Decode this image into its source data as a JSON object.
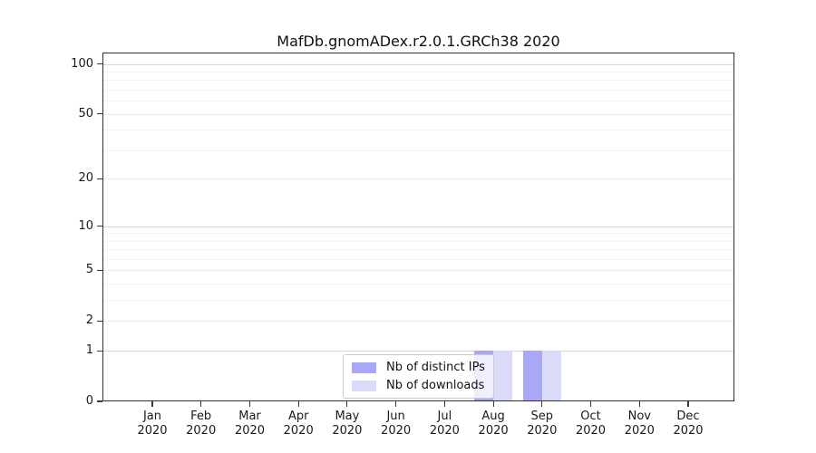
{
  "chart_data": {
    "type": "bar",
    "title": "MafDb.gnomADex.r2.0.1.GRCh38 2020",
    "categories": [
      "Jan 2020",
      "Feb 2020",
      "Mar 2020",
      "Apr 2020",
      "May 2020",
      "Jun 2020",
      "Jul 2020",
      "Aug 2020",
      "Sep 2020",
      "Oct 2020",
      "Nov 2020",
      "Dec 2020"
    ],
    "series": [
      {
        "name": "Nb of distinct IPs",
        "color": "#a8a8f6",
        "values": [
          0,
          0,
          0,
          0,
          0,
          0,
          0,
          1,
          1,
          0,
          0,
          0
        ]
      },
      {
        "name": "Nb of downloads",
        "color": "#dadaf9",
        "values": [
          0,
          0,
          0,
          0,
          0,
          0,
          0,
          1,
          1,
          0,
          0,
          0
        ]
      }
    ],
    "y_axis": {
      "scale": "log1p",
      "ticks": [
        0,
        1,
        2,
        5,
        10,
        20,
        50,
        100
      ],
      "minor_ticks": [
        3,
        4,
        6,
        7,
        8,
        9,
        30,
        40,
        60,
        70,
        80,
        90
      ],
      "major_grid_ticks": [
        1,
        10,
        100
      ],
      "ylim": [
        0,
        117
      ]
    },
    "legend": {
      "position": "lower center",
      "entries": [
        "Nb of distinct IPs",
        "Nb of downloads"
      ]
    },
    "grid": true,
    "colors": {
      "bar_distinct_ips": "#a8a8f6",
      "bar_downloads": "#dadaf9",
      "grid_major": "#d7d7d7",
      "grid_mid": "#ececec",
      "grid_minor": "#f4f4f4",
      "spine": "#2e2e2e",
      "text": "#1a1a1a"
    }
  }
}
